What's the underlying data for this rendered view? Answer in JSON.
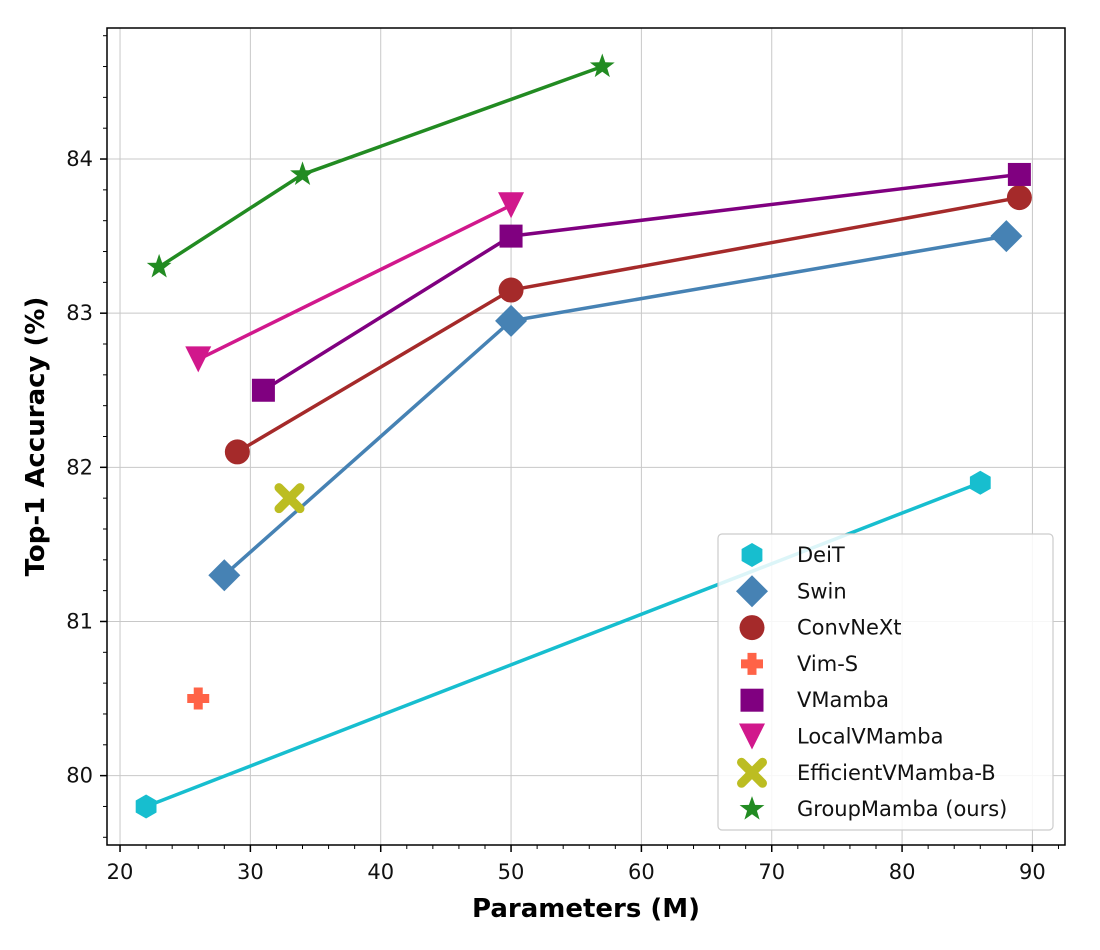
{
  "chart_data": {
    "type": "scatter",
    "xlabel": "Parameters (M)",
    "ylabel": "Top-1 Accuracy (%)",
    "xlim": [
      19,
      92.5
    ],
    "ylim": [
      79.55,
      84.85
    ],
    "xticks": [
      20,
      30,
      40,
      50,
      60,
      70,
      80,
      90
    ],
    "yticks": [
      80,
      81,
      82,
      83,
      84
    ],
    "grid": true,
    "legend_position": "bottom-right",
    "series": [
      {
        "name": "DeiT",
        "color": "#17becf",
        "marker": "hexagon",
        "line": true,
        "points": [
          [
            22,
            79.8
          ],
          [
            86,
            81.9
          ]
        ]
      },
      {
        "name": "Swin",
        "color": "#4682b4",
        "marker": "diamond",
        "line": true,
        "points": [
          [
            28,
            81.3
          ],
          [
            50,
            82.95
          ],
          [
            88,
            83.5
          ]
        ]
      },
      {
        "name": "ConvNeXt",
        "color": "#a52a2a",
        "marker": "circle",
        "line": true,
        "points": [
          [
            29,
            82.1
          ],
          [
            50,
            83.15
          ],
          [
            89,
            83.75
          ]
        ]
      },
      {
        "name": "Vim-S",
        "color": "#ff6347",
        "marker": "plus",
        "line": false,
        "points": [
          [
            26,
            80.5
          ]
        ]
      },
      {
        "name": "VMamba",
        "color": "#800080",
        "marker": "square",
        "line": true,
        "points": [
          [
            31,
            82.5
          ],
          [
            50,
            83.5
          ],
          [
            89,
            83.9
          ]
        ]
      },
      {
        "name": "LocalVMamba",
        "color": "#d1188c",
        "marker": "triangle-down",
        "line": true,
        "points": [
          [
            26,
            82.7
          ],
          [
            50,
            83.7
          ]
        ]
      },
      {
        "name": "EfficientVMamba-B",
        "color": "#bcbd22",
        "marker": "x",
        "line": false,
        "points": [
          [
            33,
            81.8
          ]
        ]
      },
      {
        "name": "GroupMamba (ours)",
        "color": "#228b22",
        "marker": "star",
        "line": true,
        "points": [
          [
            23,
            83.3
          ],
          [
            34,
            83.9
          ],
          [
            57,
            84.6
          ]
        ]
      }
    ]
  }
}
